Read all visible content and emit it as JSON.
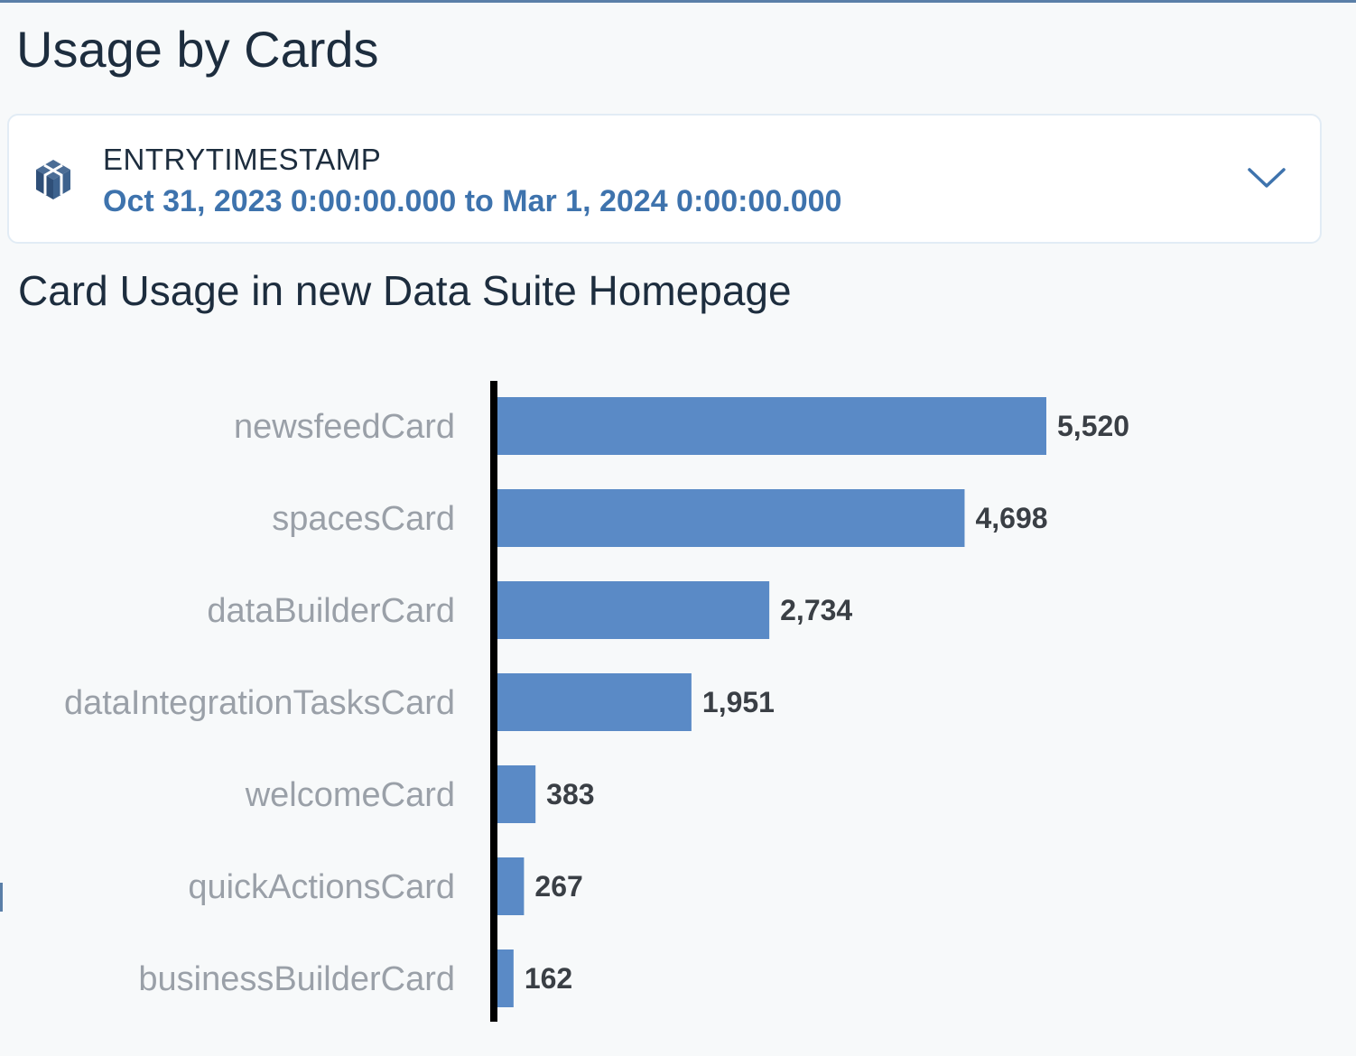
{
  "page": {
    "title": "Usage by Cards"
  },
  "filter": {
    "icon": "cube-icon",
    "label": "ENTRYTIMESTAMP",
    "value": "Oct 31, 2023 0:00:00.000 to Mar 1, 2024 0:00:00.000",
    "expand_icon": "chevron-down-icon"
  },
  "colors": {
    "accent": "#3e73ad",
    "bar": "#5a8ac6",
    "axis": "#000000"
  },
  "chart_data": {
    "type": "bar",
    "orientation": "horizontal",
    "title": "Card Usage in new Data Suite Homepage",
    "categories": [
      "newsfeedCard",
      "spacesCard",
      "dataBuilderCard",
      "dataIntegrationTasksCard",
      "welcomeCard",
      "quickActionsCard",
      "businessBuilderCard"
    ],
    "values": [
      5520,
      4698,
      2734,
      1951,
      383,
      267,
      162
    ],
    "value_labels": [
      "5,520",
      "4,698",
      "2,734",
      "1,951",
      "383",
      "267",
      "162"
    ],
    "xlim": [
      0,
      5520
    ],
    "grid": false,
    "legend": "none"
  }
}
